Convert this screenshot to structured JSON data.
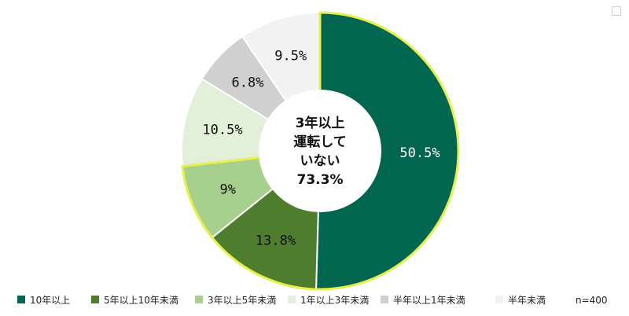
{
  "chart_data": {
    "type": "pie",
    "variant": "donut",
    "start_angle_deg": 0,
    "direction": "clockwise",
    "categories": [
      "10年以上",
      "5年以上10年未満",
      "3年以上5年未満",
      "1年以上3年未満",
      "半年以上1年未満",
      "半年未満"
    ],
    "values": [
      50.5,
      13.8,
      9,
      10.5,
      6.8,
      9.5
    ],
    "data_labels": [
      "50.5%",
      "13.8%",
      "9%",
      "10.5%",
      "6.8%",
      "9.5%"
    ],
    "colors": [
      "#00664f",
      "#4f7d2e",
      "#a8d08d",
      "#e2efd9",
      "#d0d0d0",
      "#f2f2f2"
    ],
    "label_colors": [
      "#ffffff",
      "#111111",
      "#111111",
      "#111111",
      "#111111",
      "#111111"
    ],
    "highlight": {
      "covers": [
        "10年以上",
        "5年以上10年未満",
        "3年以上5年未満"
      ],
      "color": "#e8ef4a",
      "center_text": [
        "3年以上",
        "運転して",
        "いない",
        "73.3%"
      ]
    },
    "legend": {
      "placement": "bottom",
      "entries": [
        "10年以上",
        "5年以上10年未満",
        "3年以上5年未満",
        "1年以上3年未満",
        "半年以上1年未満",
        "半年未満"
      ]
    },
    "sample_size": "n=400"
  }
}
